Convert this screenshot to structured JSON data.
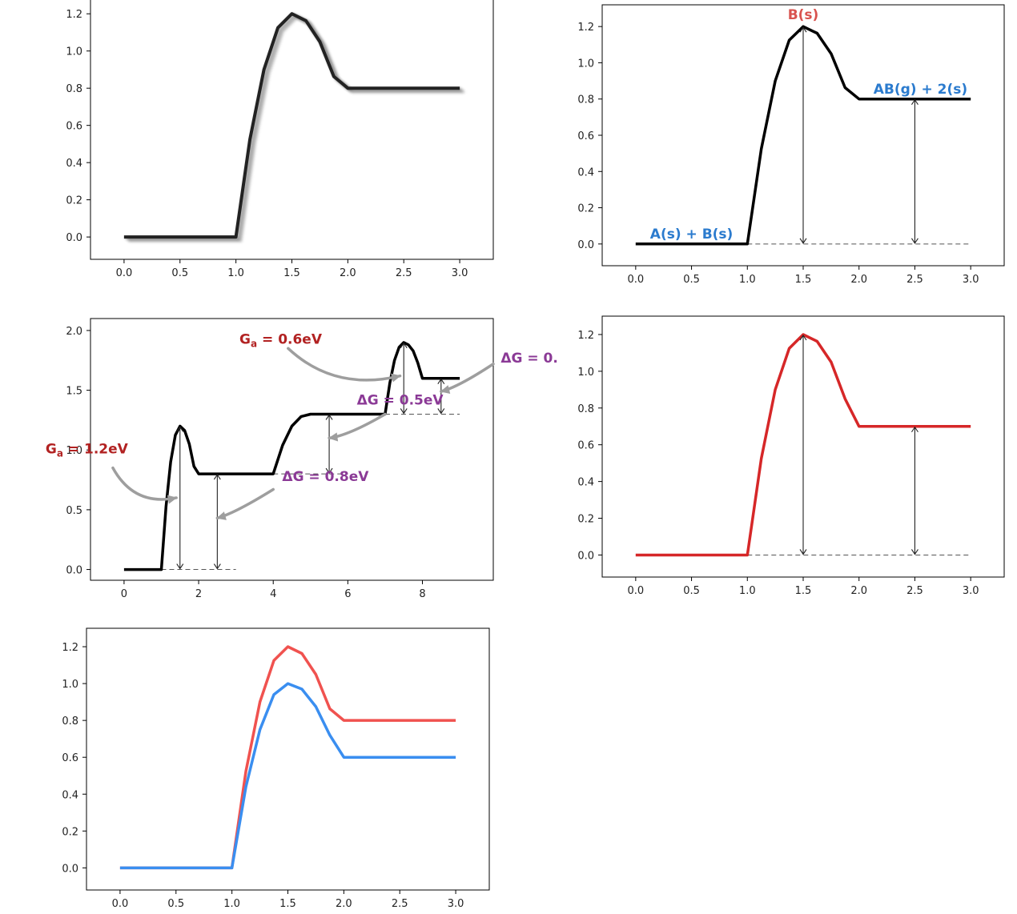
{
  "chart_data": [
    {
      "id": "p1",
      "type": "line",
      "title": "",
      "xlabel": "",
      "ylabel": "",
      "xlim": [
        -0.3,
        3.3
      ],
      "ylim": [
        -0.12,
        1.3
      ],
      "xticks": [
        0.0,
        0.5,
        1.0,
        1.5,
        2.0,
        2.5,
        3.0
      ],
      "xtick_labels": [
        "0.0",
        "0.5",
        "1.0",
        "1.5",
        "2.0",
        "2.5",
        "3.0"
      ],
      "yticks": [
        0.0,
        0.2,
        0.4,
        0.6,
        0.8,
        1.0,
        1.2
      ],
      "ytick_labels": [
        "0.0",
        "0.2",
        "0.4",
        "0.6",
        "0.8",
        "1.0",
        "1.2"
      ],
      "series": [
        {
          "name": "shaded profile",
          "color": "#222222",
          "style": "shadow",
          "x": [
            0.0,
            1.0,
            1.125,
            1.25,
            1.375,
            1.5,
            1.625,
            1.75,
            1.875,
            2.0,
            3.0
          ],
          "y": [
            0.0,
            0.0,
            0.525,
            0.9,
            1.125,
            1.2,
            1.163,
            1.05,
            0.863,
            0.8,
            0.8
          ]
        }
      ],
      "arrows": [],
      "dashed": [],
      "annotations": []
    },
    {
      "id": "p2",
      "type": "line",
      "title": "",
      "xlabel": "",
      "ylabel": "",
      "xlim": [
        -0.3,
        3.3
      ],
      "ylim": [
        -0.12,
        1.32
      ],
      "xticks": [
        0.0,
        0.5,
        1.0,
        1.5,
        2.0,
        2.5,
        3.0
      ],
      "xtick_labels": [
        "0.0",
        "0.5",
        "1.0",
        "1.5",
        "2.0",
        "2.5",
        "3.0"
      ],
      "yticks": [
        0.0,
        0.2,
        0.4,
        0.6,
        0.8,
        1.0,
        1.2
      ],
      "ytick_labels": [
        "0.0",
        "0.2",
        "0.4",
        "0.6",
        "0.8",
        "1.0",
        "1.2"
      ],
      "series": [
        {
          "name": "energy profile",
          "color": "#000000",
          "style": "solid",
          "x": [
            0.0,
            1.0,
            1.125,
            1.25,
            1.375,
            1.5,
            1.625,
            1.75,
            1.875,
            2.0,
            3.0
          ],
          "y": [
            0.0,
            0.0,
            0.525,
            0.9,
            1.125,
            1.2,
            1.163,
            1.05,
            0.863,
            0.8,
            0.8
          ]
        }
      ],
      "dashed": [
        {
          "x1": 1.0,
          "x2": 3.0,
          "y": 0.0
        }
      ],
      "arrows": [
        {
          "x": 1.5,
          "y1": 0.0,
          "y2": 1.2
        },
        {
          "x": 2.5,
          "y1": 0.0,
          "y2": 0.8
        }
      ],
      "annotations": [
        {
          "text": "B(s)",
          "x": 1.5,
          "y": 1.24,
          "color": "#d9534f",
          "anchor": "middle"
        },
        {
          "text": "A(s) + B(s)",
          "x": 0.5,
          "y": 0.03,
          "color": "#2b7bce",
          "anchor": "middle"
        },
        {
          "text": "AB(g) + 2(s)",
          "x": 2.55,
          "y": 0.83,
          "color": "#2b7bce",
          "anchor": "middle"
        }
      ]
    },
    {
      "id": "p3",
      "type": "line",
      "title": "",
      "xlabel": "",
      "ylabel": "",
      "xlim": [
        -0.9,
        9.9
      ],
      "ylim": [
        -0.09,
        2.1
      ],
      "xticks": [
        0,
        2,
        4,
        6,
        8
      ],
      "xtick_labels": [
        "0",
        "2",
        "4",
        "6",
        "8"
      ],
      "yticks": [
        0.0,
        0.5,
        1.0,
        1.5,
        2.0
      ],
      "ytick_labels": [
        "0.0",
        "0.5",
        "1.0",
        "1.5",
        "2.0"
      ],
      "series": [
        {
          "name": "multi-step profile",
          "color": "#000000",
          "style": "solid",
          "x": [
            0.0,
            1.0,
            1.125,
            1.25,
            1.375,
            1.5,
            1.625,
            1.75,
            1.875,
            2.0,
            4.0,
            4.25,
            4.5,
            4.75,
            5.0,
            7.0,
            7.125,
            7.25,
            7.375,
            7.5,
            7.625,
            7.75,
            7.875,
            8.0,
            9.0
          ],
          "y": [
            0.0,
            0.0,
            0.525,
            0.9,
            1.125,
            1.2,
            1.163,
            1.05,
            0.863,
            0.8,
            0.8,
            1.04,
            1.2,
            1.28,
            1.3,
            1.3,
            1.56,
            1.75,
            1.86,
            1.9,
            1.88,
            1.83,
            1.73,
            1.6,
            1.6
          ]
        }
      ],
      "dashed": [
        {
          "x1": 1.0,
          "x2": 3.0,
          "y": 0.0
        },
        {
          "x1": 4.0,
          "x2": 6.0,
          "y": 0.8
        },
        {
          "x1": 7.0,
          "x2": 9.0,
          "y": 1.3
        }
      ],
      "arrows": [
        {
          "x": 1.5,
          "y1": 0.0,
          "y2": 1.2
        },
        {
          "x": 2.5,
          "y1": 0.0,
          "y2": 0.8
        },
        {
          "x": 5.5,
          "y1": 0.8,
          "y2": 1.3
        },
        {
          "x": 7.5,
          "y1": 1.3,
          "y2": 1.9
        },
        {
          "x": 8.5,
          "y1": 1.3,
          "y2": 1.6
        }
      ],
      "annotations": [
        {
          "text": "Ga = 1.2eV",
          "x": -1.0,
          "y": 0.97,
          "color": "#b22222",
          "anchor": "middle"
        },
        {
          "text": "ΔG = 0.8eV",
          "x": 5.4,
          "y": 0.74,
          "color": "#8b3a96",
          "anchor": "middle"
        },
        {
          "text": "Ga = 0.6eV",
          "x": 4.2,
          "y": 1.89,
          "color": "#b22222",
          "anchor": "middle"
        },
        {
          "text": "ΔG = 0.5eV",
          "x": 7.4,
          "y": 1.38,
          "color": "#8b3a96",
          "anchor": "middle"
        },
        {
          "text": "ΔG = 0.",
          "x": 10.1,
          "y": 1.73,
          "color": "#8b3a96",
          "anchor": "start"
        }
      ],
      "curved_arrows": [
        {
          "from": [
            -0.3,
            0.85
          ],
          "to": [
            1.4,
            0.6
          ]
        },
        {
          "from": [
            4.0,
            0.67
          ],
          "to": [
            2.5,
            0.43
          ]
        },
        {
          "from": [
            4.4,
            1.85
          ],
          "to": [
            7.4,
            1.62
          ]
        },
        {
          "from": [
            7.0,
            1.3
          ],
          "to": [
            5.5,
            1.1
          ]
        },
        {
          "from": [
            9.9,
            1.72
          ],
          "to": [
            8.5,
            1.49
          ]
        }
      ]
    },
    {
      "id": "p4",
      "type": "line",
      "title": "",
      "xlabel": "",
      "ylabel": "",
      "xlim": [
        -0.3,
        3.3
      ],
      "ylim": [
        -0.12,
        1.3
      ],
      "xticks": [
        0.0,
        0.5,
        1.0,
        1.5,
        2.0,
        2.5,
        3.0
      ],
      "xtick_labels": [
        "0.0",
        "0.5",
        "1.0",
        "1.5",
        "2.0",
        "2.5",
        "3.0"
      ],
      "yticks": [
        0.0,
        0.2,
        0.4,
        0.6,
        0.8,
        1.0,
        1.2
      ],
      "ytick_labels": [
        "0.0",
        "0.2",
        "0.4",
        "0.6",
        "0.8",
        "1.0",
        "1.2"
      ],
      "series": [
        {
          "name": "red profile",
          "color": "#d62728",
          "style": "solid",
          "x": [
            0.0,
            1.0,
            1.125,
            1.25,
            1.375,
            1.5,
            1.625,
            1.75,
            1.875,
            2.0,
            3.0
          ],
          "y": [
            0.0,
            0.0,
            0.525,
            0.9,
            1.125,
            1.2,
            1.163,
            1.05,
            0.85,
            0.7,
            0.7
          ]
        }
      ],
      "dashed": [
        {
          "x1": 1.0,
          "x2": 3.0,
          "y": 0.0
        }
      ],
      "arrows": [
        {
          "x": 1.5,
          "y1": 0.0,
          "y2": 1.2
        },
        {
          "x": 2.5,
          "y1": 0.0,
          "y2": 0.7
        }
      ],
      "annotations": []
    },
    {
      "id": "p5",
      "type": "line",
      "title": "",
      "xlabel": "",
      "ylabel": "",
      "xlim": [
        -0.3,
        3.3
      ],
      "ylim": [
        -0.12,
        1.3
      ],
      "xticks": [
        0.0,
        0.5,
        1.0,
        1.5,
        2.0,
        2.5,
        3.0
      ],
      "xtick_labels": [
        "0.0",
        "0.5",
        "1.0",
        "1.5",
        "2.0",
        "2.5",
        "3.0"
      ],
      "yticks": [
        0.0,
        0.2,
        0.4,
        0.6,
        0.8,
        1.0,
        1.2
      ],
      "ytick_labels": [
        "0.0",
        "0.2",
        "0.4",
        "0.6",
        "0.8",
        "1.0",
        "1.2"
      ],
      "series": [
        {
          "name": "red curve",
          "color": "#f0524f",
          "style": "solid",
          "x": [
            0.0,
            1.0,
            1.125,
            1.25,
            1.375,
            1.5,
            1.625,
            1.75,
            1.875,
            2.0,
            3.0
          ],
          "y": [
            0.0,
            0.0,
            0.525,
            0.9,
            1.125,
            1.2,
            1.163,
            1.05,
            0.863,
            0.8,
            0.8
          ]
        },
        {
          "name": "blue curve",
          "color": "#3a8ef0",
          "style": "solid",
          "x": [
            0.0,
            1.0,
            1.125,
            1.25,
            1.375,
            1.5,
            1.625,
            1.75,
            1.875,
            2.0,
            3.0
          ],
          "y": [
            0.0,
            0.0,
            0.44,
            0.75,
            0.94,
            1.0,
            0.97,
            0.875,
            0.72,
            0.6,
            0.6
          ]
        }
      ],
      "dashed": [],
      "arrows": [],
      "annotations": []
    }
  ]
}
